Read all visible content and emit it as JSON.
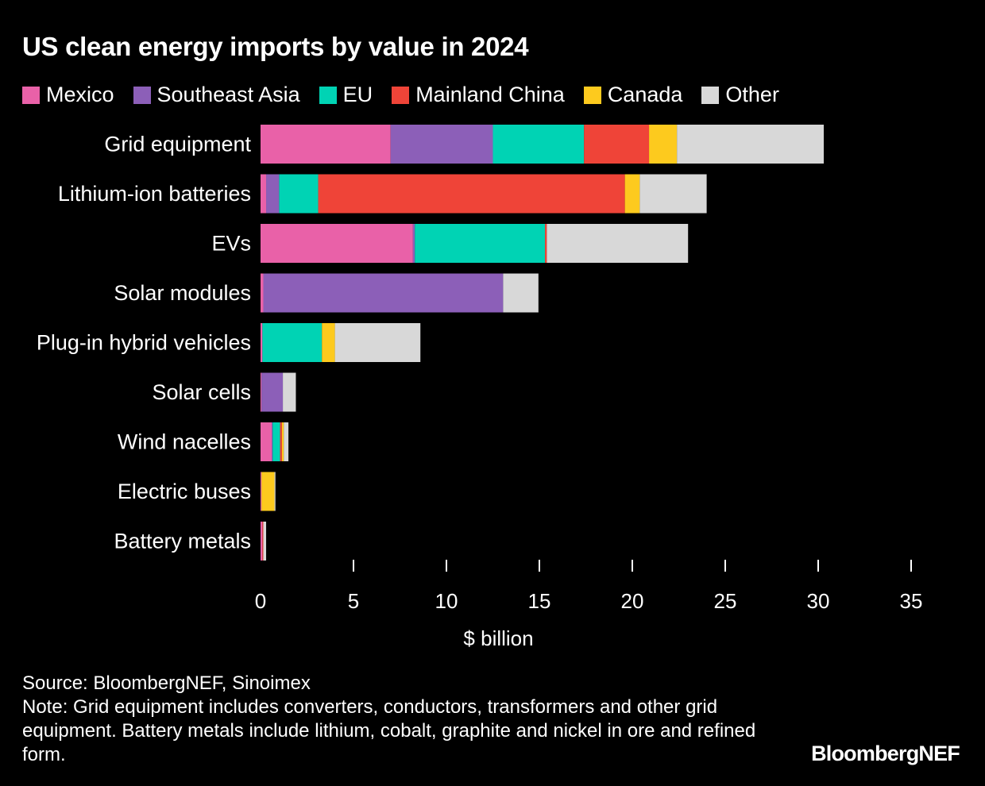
{
  "title": "US clean energy imports by value in 2024",
  "source": "Source: BloombergNEF, Sinoimex",
  "note": "Note: Grid equipment includes converters, conductors, transformers and other grid equipment. Battery metals include lithium, cobalt, graphite and nickel in ore and refined form.",
  "brand": "BloombergNEF",
  "chart_data": {
    "type": "bar",
    "orientation": "horizontal",
    "stacked": true,
    "title": "US clean energy imports by value in 2024",
    "xlabel": "$ billion",
    "ylabel": "",
    "xlim": [
      0,
      35
    ],
    "x_ticks": [
      0,
      5,
      10,
      15,
      20,
      25,
      30,
      35
    ],
    "grid": false,
    "legend_position": "top",
    "categories": [
      "Grid equipment",
      "Lithium-ion batteries",
      "EVs",
      "Solar modules",
      "Plug-in hybrid vehicles",
      "Solar cells",
      "Wind nacelles",
      "Electric buses",
      "Battery metals"
    ],
    "series": [
      {
        "name": "Mexico",
        "color": "#e961a8",
        "values": [
          7.0,
          0.3,
          8.2,
          0.15,
          0.1,
          0.05,
          0.6,
          0.05,
          0.1
        ]
      },
      {
        "name": "Southeast Asia",
        "color": "#8c5fb8",
        "values": [
          5.5,
          0.7,
          0.1,
          12.9,
          0.0,
          1.15,
          0.05,
          0.0,
          0.0
        ]
      },
      {
        "name": "EU",
        "color": "#00d3b4",
        "values": [
          4.9,
          2.1,
          7.0,
          0.0,
          3.2,
          0.0,
          0.4,
          0.0,
          0.0
        ]
      },
      {
        "name": "Mainland China",
        "color": "#ef4438",
        "values": [
          3.5,
          16.5,
          0.1,
          0.0,
          0.0,
          0.0,
          0.1,
          0.0,
          0.05
        ]
      },
      {
        "name": "Canada",
        "color": "#fdca1e",
        "values": [
          1.5,
          0.8,
          0.0,
          0.0,
          0.7,
          0.0,
          0.1,
          0.7,
          0.0
        ]
      },
      {
        "name": "Other",
        "color": "#d8d8d8",
        "values": [
          7.9,
          3.6,
          7.6,
          1.9,
          4.6,
          0.7,
          0.25,
          0.05,
          0.15
        ]
      }
    ]
  }
}
